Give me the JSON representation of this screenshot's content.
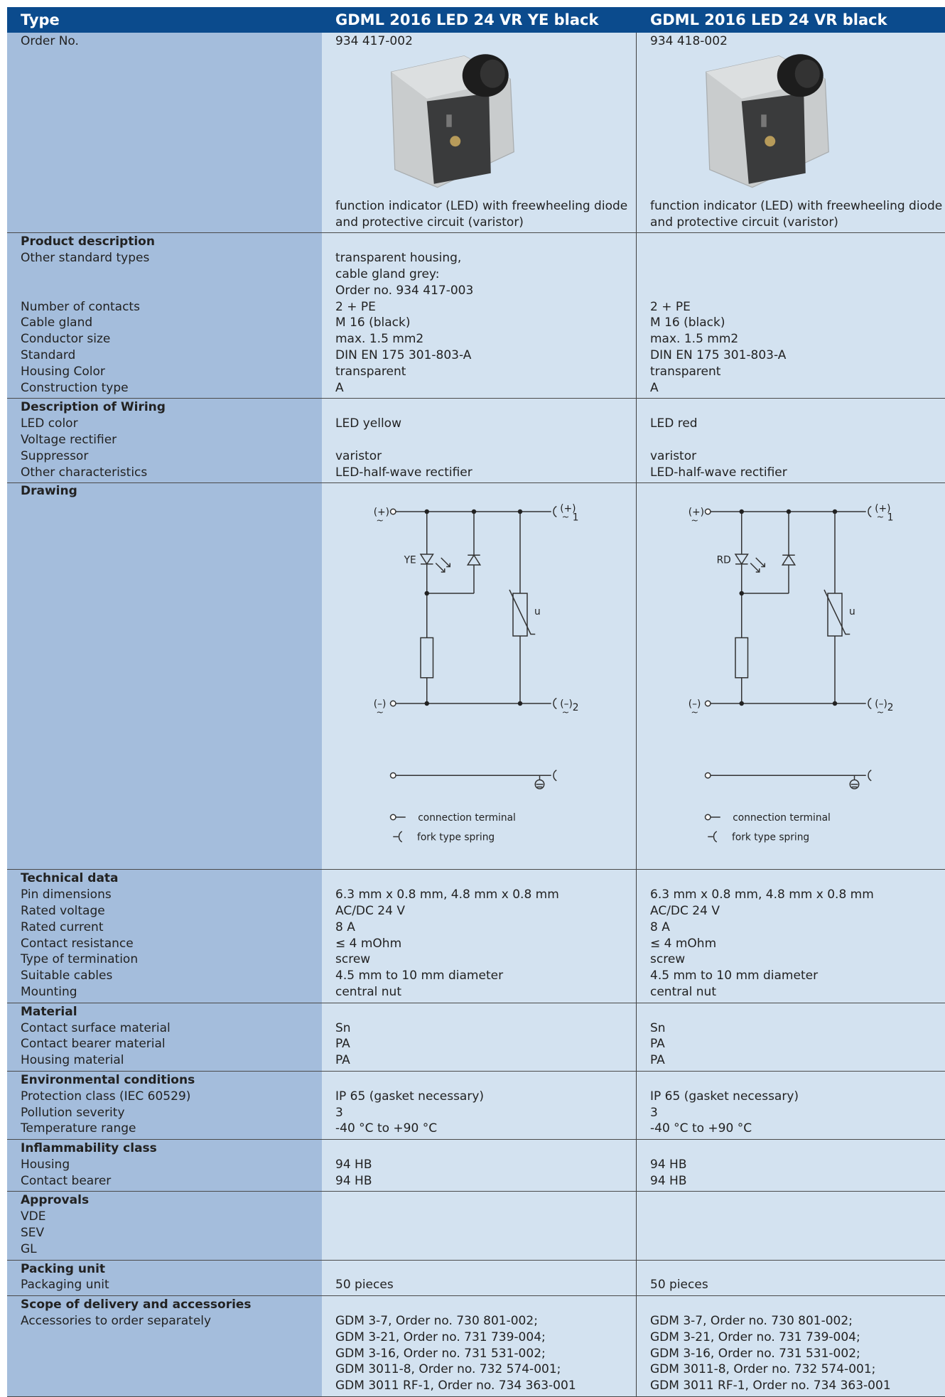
{
  "header": {
    "label": "Type",
    "columns": [
      "GDML 2016 LED 24 VR YE black",
      "GDML 2016 LED 24 VR black"
    ]
  },
  "order": {
    "label": "Order No.",
    "values": [
      "934 417-002",
      "934 418-002"
    ],
    "descriptions": [
      [
        "function indicator (LED) with freewheeling diode",
        "and protective circuit (varistor)"
      ],
      [
        "function indicator (LED) with freewheeling diode",
        "and protective circuit (varistor)"
      ]
    ]
  },
  "sections": [
    {
      "title": "Product description",
      "rows": [
        {
          "label": "Other standard types",
          "values": [
            [
              "transparent housing,",
              "cable gland grey:",
              "Order no. 934 417-003"
            ],
            []
          ]
        },
        {
          "label": "Number of contacts",
          "values": [
            [
              "2 + PE"
            ],
            [
              "2 + PE"
            ]
          ]
        },
        {
          "label": "Cable gland",
          "values": [
            [
              "M 16 (black)"
            ],
            [
              "M 16 (black)"
            ]
          ]
        },
        {
          "label": "Conductor size",
          "values": [
            [
              "max. 1.5 mm2"
            ],
            [
              "max. 1.5 mm2"
            ]
          ]
        },
        {
          "label": "Standard",
          "values": [
            [
              "DIN EN 175 301-803-A"
            ],
            [
              "DIN EN 175 301-803-A"
            ]
          ]
        },
        {
          "label": "Housing Color",
          "values": [
            [
              "transparent"
            ],
            [
              "transparent"
            ]
          ]
        },
        {
          "label": "Construction type",
          "values": [
            [
              "A"
            ],
            [
              "A"
            ]
          ]
        }
      ]
    },
    {
      "title": "Description of Wiring",
      "rows": [
        {
          "label": "LED color",
          "values": [
            [
              "LED yellow"
            ],
            [
              "LED red"
            ]
          ]
        },
        {
          "label": "Voltage rectifier",
          "values": [
            [],
            []
          ]
        },
        {
          "label": "Suppressor",
          "values": [
            [
              "varistor"
            ],
            [
              "varistor"
            ]
          ]
        },
        {
          "label": "Other characteristics",
          "values": [
            [
              "LED-half-wave rectifier"
            ],
            [
              "LED-half-wave rectifier"
            ]
          ]
        }
      ]
    },
    {
      "title": "Drawing",
      "diagrams": [
        {
          "led": "YE",
          "varistor": "u",
          "plus": "(+)",
          "minus": "(–)",
          "ac": "~",
          "pin1": "1",
          "pin2": "2",
          "terminal": "connection terminal",
          "spring": "fork type spring"
        },
        {
          "led": "RD",
          "varistor": "u",
          "plus": "(+)",
          "minus": "(–)",
          "ac": "~",
          "pin1": "1",
          "pin2": "2",
          "terminal": "connection terminal",
          "spring": "fork type spring"
        }
      ]
    },
    {
      "title": "Technical data",
      "rows": [
        {
          "label": "Pin dimensions",
          "values": [
            [
              "6.3 mm x 0.8 mm, 4.8 mm x 0.8 mm"
            ],
            [
              "6.3 mm x 0.8 mm, 4.8 mm x 0.8 mm"
            ]
          ]
        },
        {
          "label": "Rated voltage",
          "values": [
            [
              "AC/DC 24 V"
            ],
            [
              "AC/DC 24 V"
            ]
          ]
        },
        {
          "label": "Rated current",
          "values": [
            [
              "8 A"
            ],
            [
              "8 A"
            ]
          ]
        },
        {
          "label": "Contact resistance",
          "values": [
            [
              "≤ 4 mOhm"
            ],
            [
              "≤ 4 mOhm"
            ]
          ]
        },
        {
          "label": "Type of termination",
          "values": [
            [
              "screw"
            ],
            [
              "screw"
            ]
          ]
        },
        {
          "label": "Suitable cables",
          "values": [
            [
              "4.5 mm to 10 mm diameter"
            ],
            [
              "4.5 mm to 10 mm diameter"
            ]
          ]
        },
        {
          "label": "Mounting",
          "values": [
            [
              "central nut"
            ],
            [
              "central nut"
            ]
          ]
        }
      ]
    },
    {
      "title": "Material",
      "rows": [
        {
          "label": "Contact surface material",
          "values": [
            [
              "Sn"
            ],
            [
              "Sn"
            ]
          ]
        },
        {
          "label": "Contact bearer material",
          "values": [
            [
              "PA"
            ],
            [
              "PA"
            ]
          ]
        },
        {
          "label": "Housing material",
          "values": [
            [
              "PA"
            ],
            [
              "PA"
            ]
          ]
        }
      ]
    },
    {
      "title": "Environmental conditions",
      "rows": [
        {
          "label": "Protection class (IEC 60529)",
          "values": [
            [
              "IP 65 (gasket necessary)"
            ],
            [
              "IP 65 (gasket necessary)"
            ]
          ]
        },
        {
          "label": "Pollution severity",
          "values": [
            [
              "3"
            ],
            [
              "3"
            ]
          ]
        },
        {
          "label": "Temperature range",
          "values": [
            [
              "-40 °C to +90 °C"
            ],
            [
              "-40 °C to +90 °C"
            ]
          ]
        }
      ]
    },
    {
      "title": "Inflammability class",
      "rows": [
        {
          "label": "Housing",
          "values": [
            [
              "94 HB"
            ],
            [
              "94 HB"
            ]
          ]
        },
        {
          "label": "Contact bearer",
          "values": [
            [
              "94 HB"
            ],
            [
              "94 HB"
            ]
          ]
        }
      ]
    },
    {
      "title": "Approvals",
      "rows": [
        {
          "label": "VDE",
          "values": [
            [],
            []
          ]
        },
        {
          "label": "SEV",
          "values": [
            [],
            []
          ]
        },
        {
          "label": "GL",
          "values": [
            [],
            []
          ]
        }
      ]
    },
    {
      "title": "Packing unit",
      "rows": [
        {
          "label": "Packaging unit",
          "values": [
            [
              "50 pieces"
            ],
            [
              "50 pieces"
            ]
          ]
        }
      ]
    },
    {
      "title": "Scope of delivery and accessories",
      "rows": [
        {
          "label": "Accessories to order separately",
          "values": [
            [
              "GDM 3-7, Order no. 730 801-002;",
              "GDM 3-21, Order no. 731 739-004;",
              "GDM 3-16, Order no. 731 531-002;",
              "GDM 3011-8, Order no. 732 574-001;",
              "GDM 3011 RF-1, Order no. 734 363-001"
            ],
            [
              "GDM 3-7, Order no. 730 801-002;",
              "GDM 3-21, Order no. 731 739-004;",
              "GDM 3-16, Order no. 731 531-002;",
              "GDM 3011-8, Order no. 732 574-001;",
              "GDM 3011 RF-1, Order no. 734 363-001"
            ]
          ]
        }
      ]
    }
  ]
}
